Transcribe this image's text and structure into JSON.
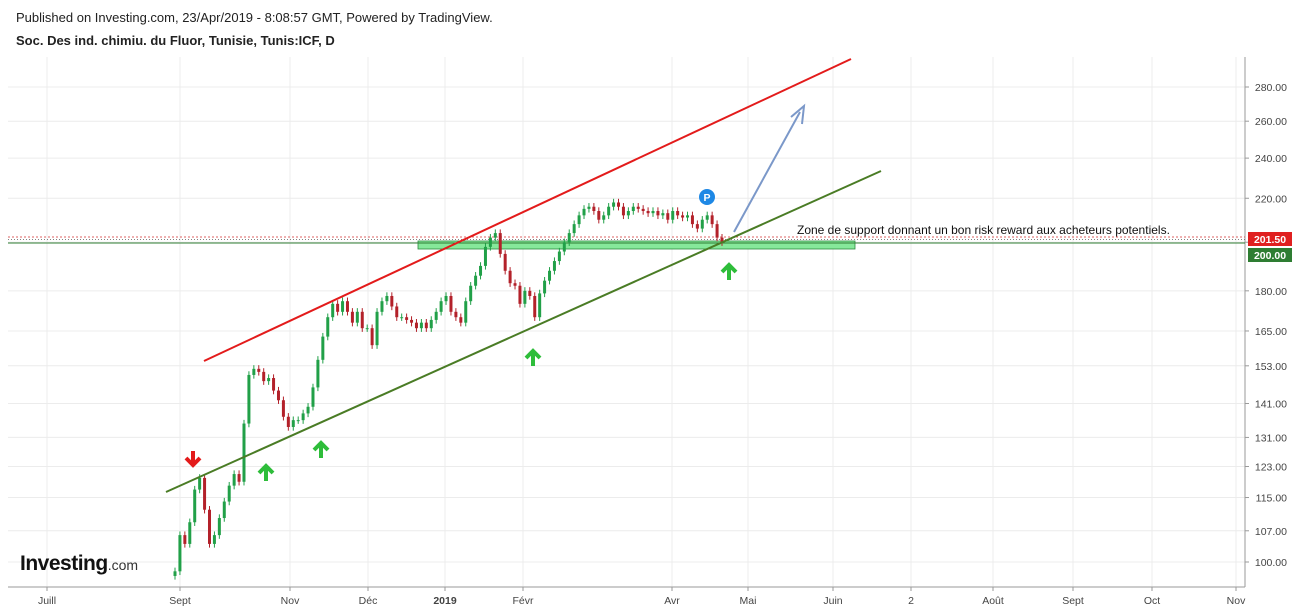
{
  "header": {
    "published": "Published on Investing.com, 23/Apr/2019 - 8:08:57 GMT, Powered by TradingView.",
    "symbol": "Soc. Des ind. chimiu. du Fluor, Tunisie, Tunis:ICF, D"
  },
  "logo": {
    "main": "Investing",
    "suffix": ".com"
  },
  "chart_data": {
    "type": "candlestick",
    "title": "Soc. Des ind. chimiu. du Fluor, Tunisie, Tunis:ICF, D",
    "x_ticks": [
      "Juill",
      "Sept",
      "Nov",
      "Déc",
      "2019",
      "Févr",
      "Avr",
      "Mai",
      "Juin",
      "2",
      "Août",
      "Sept",
      "Oct",
      "Nov"
    ],
    "y_ticks": [
      280.0,
      260.0,
      240.0,
      220.0,
      200.0,
      180.0,
      165.0,
      153.0,
      141.0,
      131.0,
      123.0,
      115.0,
      107.0,
      100.0
    ],
    "y_scale": "log",
    "ylim": [
      97,
      296
    ],
    "price_tags": [
      {
        "label": "201.50",
        "value": 201.5,
        "color": "#e02020"
      },
      {
        "label": "200.00",
        "value": 200.0,
        "color": "#2e7d32"
      }
    ],
    "annotation": "Zone de support donnant un bon risk reward aux acheteurs potentiels.",
    "marker_label": "P",
    "colors": {
      "up": "#21a048",
      "down": "#b3212a",
      "channel_upper": "#e31b1b",
      "channel_lower": "#4a7c25",
      "projection": "#7b98c9",
      "support_zone": "#86e89a",
      "arrow_up": "#2ebd3a",
      "arrow_down": "#e31b1b"
    },
    "closes": [
      98,
      106,
      104,
      109,
      117,
      120,
      112,
      104,
      106,
      110,
      114,
      118,
      121,
      119,
      135,
      150,
      152,
      151,
      148,
      149,
      145,
      142,
      137,
      134,
      136,
      136,
      138,
      140,
      146,
      155,
      163,
      170,
      175,
      172,
      176,
      172,
      168,
      172,
      166,
      166,
      160,
      172,
      176,
      178,
      174,
      170,
      170,
      169,
      168,
      166,
      168,
      166,
      169,
      172,
      176,
      178,
      172,
      170,
      168,
      176,
      182,
      186,
      190,
      198,
      202,
      204,
      195,
      188,
      183,
      182,
      175,
      180,
      178,
      170,
      179,
      184,
      188,
      192,
      196,
      200,
      204,
      208,
      212,
      215,
      216,
      214,
      210,
      212,
      216,
      218,
      216,
      212,
      214,
      216,
      215,
      214,
      213,
      214,
      212,
      213,
      210,
      214,
      212,
      211,
      212,
      208,
      206,
      210,
      212,
      208,
      202,
      200
    ]
  }
}
